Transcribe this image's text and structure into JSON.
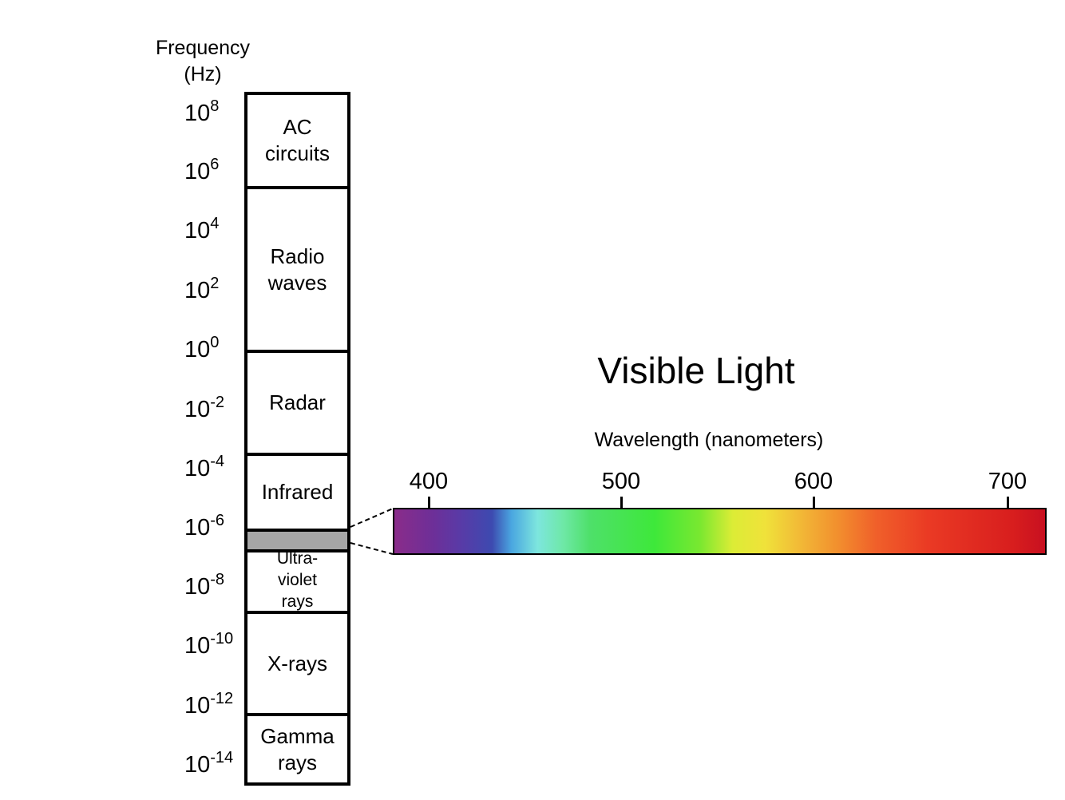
{
  "frequency_axis": {
    "title_line1": "Frequency",
    "title_line2": "(Hz)",
    "ticks": [
      {
        "base": "10",
        "exp": "8"
      },
      {
        "base": "10",
        "exp": "6"
      },
      {
        "base": "10",
        "exp": "4"
      },
      {
        "base": "10",
        "exp": "2"
      },
      {
        "base": "10",
        "exp": "0"
      },
      {
        "base": "10",
        "exp": "-2"
      },
      {
        "base": "10",
        "exp": "-4"
      },
      {
        "base": "10",
        "exp": "-6"
      },
      {
        "base": "10",
        "exp": "-8"
      },
      {
        "base": "10",
        "exp": "-10"
      },
      {
        "base": "10",
        "exp": "-12"
      },
      {
        "base": "10",
        "exp": "-14"
      }
    ]
  },
  "bands": [
    {
      "label": "AC\ncircuits"
    },
    {
      "label": "Radio\nwaves"
    },
    {
      "label": "Radar"
    },
    {
      "label": "Infrared"
    },
    {
      "label": "Ultra-\nviolet\nrays"
    },
    {
      "label": "X-rays"
    },
    {
      "label": "Gamma\nrays"
    }
  ],
  "visible_light": {
    "title": "Visible Light",
    "axis_label": "Wavelength (nanometers)",
    "ticks": [
      "400",
      "500",
      "600",
      "700"
    ],
    "band_color": "#a6a6a6"
  }
}
